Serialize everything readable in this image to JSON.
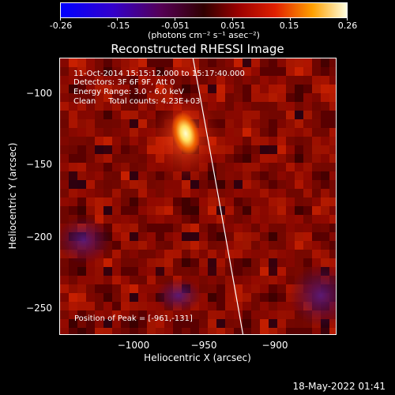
{
  "colorbar": {
    "tick_labels": [
      "-0.26",
      "-0.15",
      "-0.051",
      "0.051",
      "0.15",
      "0.26"
    ],
    "units": "(photons cm⁻² s⁻¹ asec⁻²)"
  },
  "title": "Reconstructed RHESSI Image",
  "info": {
    "line1": "11-Oct-2014 15:15:12.000 to 15:17:40.000",
    "line2": "Detectors: 3F 6F 9F, Att 0",
    "line3": "Energy Range: 3.0 - 6.0 keV",
    "line4": "Clean     Total counts: 4.23E+03"
  },
  "peak_label": "Position of Peak = [-961,-131]",
  "axes": {
    "xlabel": "Heliocentric X (arcsec)",
    "ylabel": "Heliocentric Y (arcsec)",
    "xticks": [
      "−1000",
      "−950",
      "−900"
    ],
    "yticks": [
      "−100",
      "−150",
      "−200",
      "−250"
    ]
  },
  "timestamp": "18-May-2022 01:41",
  "colors": {
    "background": "#000000",
    "limb_line": "#ffffff"
  }
}
